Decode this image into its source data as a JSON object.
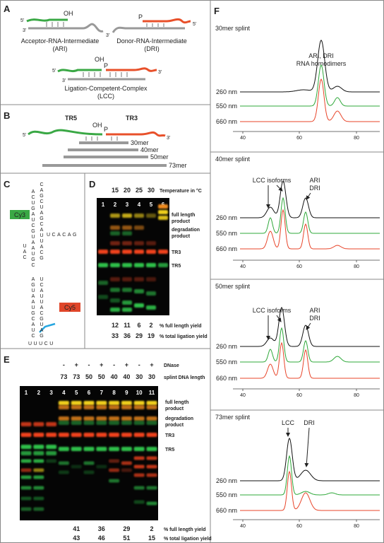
{
  "panel_a": {
    "label": "A",
    "oh": "OH",
    "p": "P",
    "five": "5'",
    "three": "3'",
    "ari_name": "Acceptor-RNA-Intermediate",
    "ari_abbr": "(ARI)",
    "dri_name": "Donor-RNA-Intermediate",
    "dri_abbr": "(DRI)",
    "lcc_name": "Ligation-Competent-Complex",
    "lcc_abbr": "(LCC)"
  },
  "panel_b": {
    "label": "B",
    "tr5": "TR5",
    "tr3": "TR3",
    "oh": "OH",
    "p": "P",
    "five": "5'",
    "three": "3'",
    "splints": [
      "30mer",
      "40mer",
      "50mer",
      "73mer"
    ]
  },
  "panel_c": {
    "label": "C",
    "cy3": "Cy3",
    "cy5": "Cy5",
    "sequence": [
      "ACUGAUCGUAAUGC",
      "CAGCUAGCAUUACG",
      "UAC",
      "UCACAG",
      "AGUAAUGCAUC",
      "UCAUUACGUAG",
      "UUUCU"
    ]
  },
  "panel_d": {
    "label": "D",
    "temperatures": [
      15,
      20,
      25,
      30
    ],
    "temperature_label": "Temperature in °C",
    "lanes": [
      1,
      2,
      3,
      4,
      5,
      6
    ],
    "full_length": [
      "full length",
      "product"
    ],
    "degradation": [
      "degradation",
      "product"
    ],
    "tr3": "TR3",
    "tr5": "TR5",
    "full_length_yield": [
      12,
      11,
      6,
      2
    ],
    "full_length_yield_label": "% full length yield",
    "total_yield": [
      33,
      36,
      29,
      19
    ],
    "total_yield_label": "% total ligation yield"
  },
  "panel_e": {
    "label": "E",
    "dnase": [
      "-",
      "+",
      "-",
      "+",
      "-",
      "+",
      "-",
      "+"
    ],
    "dnase_label": "DNase",
    "splint_lengths": [
      73,
      73,
      50,
      50,
      40,
      40,
      30,
      30
    ],
    "splint_label": "splint DNA length",
    "lanes": [
      1,
      2,
      3,
      4,
      5,
      6,
      7,
      8,
      9,
      10,
      11
    ],
    "full_length": [
      "full length",
      "product"
    ],
    "degradation": [
      "degradation",
      "product"
    ],
    "tr3": "TR3",
    "tr5": "TR5",
    "full_length_yield": [
      41,
      36,
      29,
      2
    ],
    "full_length_yield_label": "% full length yield",
    "total_yield": [
      43,
      46,
      51,
      15
    ],
    "total_yield_label": "% total ligation yield"
  },
  "panel_f": {
    "label": "F",
    "axis_ticks": [
      40,
      60,
      80
    ],
    "wavelengths": [
      "260 nm",
      "550 nm",
      "660 nm"
    ],
    "panels": [
      {
        "title": "30mer splint",
        "annotations": [
          "ARI, DRI",
          "RNA homodimers"
        ]
      },
      {
        "title": "40mer splint",
        "annotations": [
          "LCC isoforms",
          "ARI",
          "DRI"
        ]
      },
      {
        "title": "50mer splint",
        "annotations": [
          "LCC isoforms",
          "ARI",
          "DRI"
        ]
      },
      {
        "title": "73mer splint",
        "annotations": [
          "LCC",
          "DRI"
        ]
      }
    ]
  }
}
